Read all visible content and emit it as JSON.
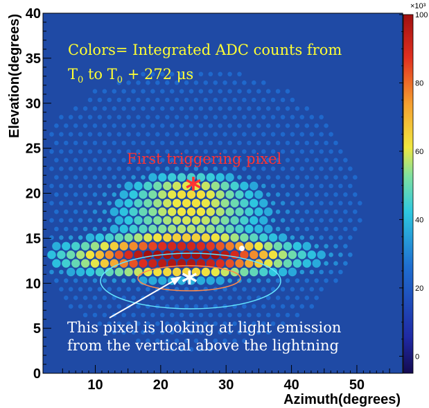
{
  "chart_data": {
    "type": "heatmap",
    "title": "",
    "xlabel": "Azimuth(degrees)",
    "ylabel": "Elevation(degrees)",
    "xlim": [
      2,
      57
    ],
    "ylim": [
      0,
      40
    ],
    "x_ticks": [
      "10",
      "20",
      "30",
      "40",
      "50"
    ],
    "y_ticks": [
      "0",
      "5",
      "10",
      "15",
      "20",
      "25",
      "30",
      "35",
      "40"
    ],
    "colorbar": {
      "range": [
        -5,
        100
      ],
      "ticks": [
        "0",
        "20",
        "40",
        "60",
        "80",
        "100"
      ],
      "multiplier": "×10³"
    },
    "colors": {
      "background": "#1f4aa5",
      "annotation_yellow": "#ffff33",
      "annotation_red": "#ff3333",
      "annotation_white": "#ffffff",
      "inner_ellipse": "#ff8a4a",
      "outer_ellipse": "#66e6ff"
    },
    "markers": [
      {
        "label": "first-trigger",
        "x": 25,
        "y": 21.2,
        "color": "#ff3333"
      },
      {
        "label": "vertical-pixel",
        "x": 24.4,
        "y": 10.8,
        "color": "#ffffff"
      }
    ],
    "annotations": {
      "colors_prefix": "Colors= Integrated ADC counts from",
      "time_t": "T",
      "time_sub": "0",
      "time_to": " to ",
      "time_plus": " + 272 μs",
      "first_trigger": "First triggering pixel",
      "pixel_note_line1": "This pixel is looking at light emission",
      "pixel_note_line2": "from the vertical above the lightning"
    }
  }
}
